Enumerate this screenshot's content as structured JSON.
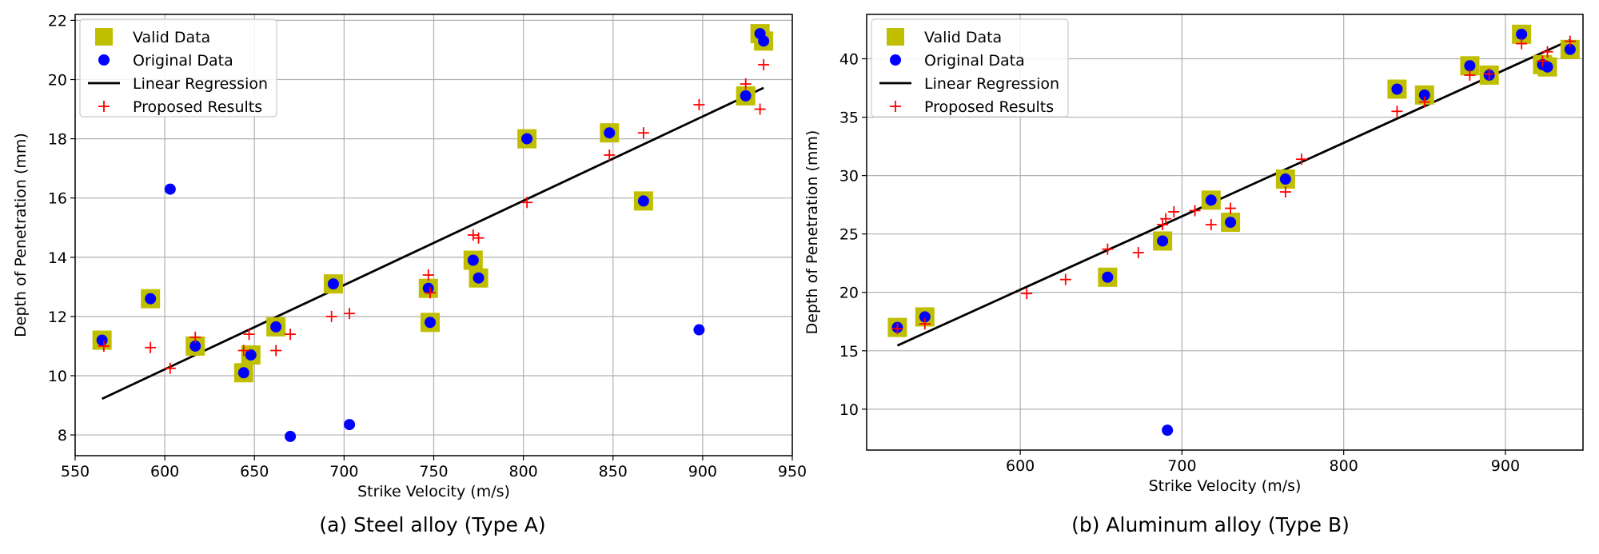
{
  "chart_data": [
    {
      "type": "scatter",
      "caption": "(a) Steel alloy (Type A)",
      "xlabel": "Strike Velocity (m/s)",
      "ylabel": "Depth of Penetration (mm)",
      "xlim": [
        550,
        950
      ],
      "ylim": [
        7.3,
        22.2
      ],
      "xticks": [
        550,
        600,
        650,
        700,
        750,
        800,
        850,
        900,
        950
      ],
      "yticks": [
        8,
        10,
        12,
        14,
        16,
        18,
        20,
        22
      ],
      "grid": true,
      "legend_position": "top-left",
      "series": [
        {
          "name": "Valid Data",
          "marker": "square",
          "color": "#bfbf00",
          "points": [
            [
              565,
              11.2
            ],
            [
              592,
              12.6
            ],
            [
              617,
              11
            ],
            [
              644,
              10.1
            ],
            [
              648,
              10.7
            ],
            [
              662,
              11.65
            ],
            [
              694,
              13.1
            ],
            [
              747,
              12.95
            ],
            [
              748,
              11.8
            ],
            [
              772,
              13.9
            ],
            [
              775,
              13.3
            ],
            [
              802,
              18
            ],
            [
              848,
              18.2
            ],
            [
              867,
              15.9
            ],
            [
              924,
              19.45
            ],
            [
              932,
              21.55
            ],
            [
              934,
              21.3
            ]
          ]
        },
        {
          "name": "Original Data",
          "marker": "circle",
          "color": "#0000ff",
          "points": [
            [
              565,
              11.2
            ],
            [
              592,
              12.6
            ],
            [
              603,
              16.3
            ],
            [
              617,
              11
            ],
            [
              644,
              10.1
            ],
            [
              648,
              10.7
            ],
            [
              662,
              11.65
            ],
            [
              670,
              7.95
            ],
            [
              694,
              13.1
            ],
            [
              703,
              8.35
            ],
            [
              747,
              12.95
            ],
            [
              748,
              11.8
            ],
            [
              772,
              13.9
            ],
            [
              775,
              13.3
            ],
            [
              802,
              18
            ],
            [
              848,
              18.2
            ],
            [
              867,
              15.9
            ],
            [
              898,
              11.55
            ],
            [
              924,
              19.45
            ],
            [
              932,
              21.55
            ],
            [
              934,
              21.3
            ]
          ]
        },
        {
          "name": "Linear Regression",
          "marker": "line",
          "color": "#000000",
          "points": [
            [
              565,
              9.22
            ],
            [
              934,
              19.72
            ]
          ]
        },
        {
          "name": "Proposed Results",
          "marker": "plus",
          "color": "#ff0000",
          "points": [
            [
              566,
              11
            ],
            [
              592,
              10.95
            ],
            [
              603,
              10.25
            ],
            [
              617,
              11.3
            ],
            [
              644,
              10.85
            ],
            [
              647,
              11.4
            ],
            [
              662,
              10.85
            ],
            [
              670,
              11.4
            ],
            [
              693,
              12
            ],
            [
              703,
              12.1
            ],
            [
              747,
              13.4
            ],
            [
              748,
              12.8
            ],
            [
              772,
              14.75
            ],
            [
              775,
              14.65
            ],
            [
              802,
              15.85
            ],
            [
              848,
              17.45
            ],
            [
              867,
              18.2
            ],
            [
              898,
              19.15
            ],
            [
              924,
              19.85
            ],
            [
              932,
              19
            ],
            [
              934,
              20.5
            ]
          ]
        }
      ]
    },
    {
      "type": "scatter",
      "caption": "(b) Aluminum alloy (Type B)",
      "xlabel": "Strike Velocity (m/s)",
      "ylabel": "Depth of Penetration (mm)",
      "xlim": [
        505,
        948
      ],
      "ylim": [
        6.5,
        43.8
      ],
      "xticks": [
        600,
        700,
        800,
        900
      ],
      "yticks": [
        10,
        15,
        20,
        25,
        30,
        35,
        40
      ],
      "grid": true,
      "legend_position": "top-left",
      "series": [
        {
          "name": "Valid Data",
          "marker": "square",
          "color": "#bfbf00",
          "points": [
            [
              524,
              17
            ],
            [
              541,
              17.9
            ],
            [
              654,
              21.3
            ],
            [
              688,
              24.4
            ],
            [
              718,
              27.9
            ],
            [
              730,
              26
            ],
            [
              764,
              29.7
            ],
            [
              833,
              37.4
            ],
            [
              850,
              36.9
            ],
            [
              878,
              39.4
            ],
            [
              890,
              38.6
            ],
            [
              910,
              42.1
            ],
            [
              923,
              39.5
            ],
            [
              926,
              39.3
            ],
            [
              940,
              40.8
            ]
          ]
        },
        {
          "name": "Original Data",
          "marker": "circle",
          "color": "#0000ff",
          "points": [
            [
              524,
              17
            ],
            [
              541,
              17.9
            ],
            [
              654,
              21.3
            ],
            [
              688,
              24.4
            ],
            [
              691,
              8.2
            ],
            [
              718,
              27.9
            ],
            [
              730,
              26
            ],
            [
              764,
              29.7
            ],
            [
              833,
              37.4
            ],
            [
              850,
              36.9
            ],
            [
              878,
              39.4
            ],
            [
              890,
              38.6
            ],
            [
              910,
              42.1
            ],
            [
              923,
              39.5
            ],
            [
              926,
              39.3
            ],
            [
              940,
              40.8
            ]
          ]
        },
        {
          "name": "Linear Regression",
          "marker": "line",
          "color": "#000000",
          "points": [
            [
              524,
              15.45
            ],
            [
              940,
              41.6
            ]
          ]
        },
        {
          "name": "Proposed Results",
          "marker": "plus",
          "color": "#ff0000",
          "points": [
            [
              524,
              16.9
            ],
            [
              541,
              17.3
            ],
            [
              604,
              19.9
            ],
            [
              628,
              21.1
            ],
            [
              654,
              23.7
            ],
            [
              673,
              23.4
            ],
            [
              688,
              25.8
            ],
            [
              690,
              26.3
            ],
            [
              695,
              26.9
            ],
            [
              708,
              27
            ],
            [
              718,
              25.8
            ],
            [
              730,
              27.2
            ],
            [
              764,
              28.6
            ],
            [
              774,
              31.4
            ],
            [
              833,
              35.5
            ],
            [
              850,
              36.3
            ],
            [
              878,
              38.6
            ],
            [
              890,
              38.7
            ],
            [
              910,
              41.3
            ],
            [
              923,
              39.8
            ],
            [
              926,
              40.6
            ],
            [
              940,
              41.5
            ]
          ]
        }
      ]
    }
  ]
}
